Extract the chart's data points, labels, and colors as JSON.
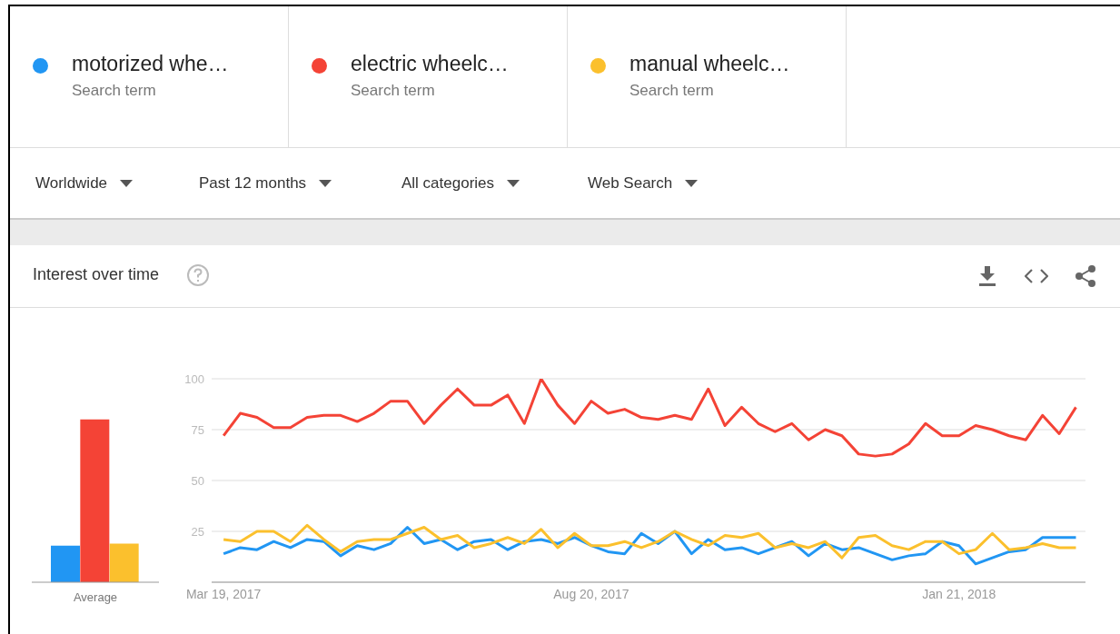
{
  "chart_data": [
    {
      "type": "bar",
      "title": "Interest over time",
      "xlabel": "Average",
      "categories": [
        null,
        null,
        null
      ],
      "values": [
        18,
        80,
        19
      ],
      "colors": [
        "#2196f3",
        "#f44336",
        "#fbc02d"
      ],
      "ylim": [
        0,
        100
      ],
      "tick_labels": false
    },
    {
      "type": "line",
      "legend": "top",
      "grid": "y",
      "x": [
        "2017-03-19",
        "2017-03-26",
        "2017-04-02",
        "2017-04-09",
        "2017-04-16",
        "2017-04-23",
        "2017-04-30",
        "2017-05-07",
        "2017-05-14",
        "2017-05-21",
        "2017-05-28",
        "2017-06-04",
        "2017-06-11",
        "2017-06-18",
        "2017-06-25",
        "2017-07-02",
        "2017-07-09",
        "2017-07-16",
        "2017-07-23",
        "2017-07-30",
        "2017-08-06",
        "2017-08-13",
        "2017-08-20",
        "2017-08-27",
        "2017-09-03",
        "2017-09-10",
        "2017-09-17",
        "2017-09-24",
        "2017-10-01",
        "2017-10-08",
        "2017-10-15",
        "2017-10-22",
        "2017-10-29",
        "2017-11-05",
        "2017-11-12",
        "2017-11-19",
        "2017-11-26",
        "2017-12-03",
        "2017-12-10",
        "2017-12-17",
        "2017-12-24",
        "2017-12-31",
        "2018-01-07",
        "2018-01-14",
        "2018-01-21",
        "2018-01-28",
        "2018-02-04",
        "2018-02-11",
        "2018-02-18",
        "2018-02-25",
        "2018-03-04",
        "2018-03-11"
      ],
      "series": [
        {
          "name": "motorized whe…",
          "color": "#2196f3",
          "values": [
            14,
            17,
            16,
            20,
            17,
            21,
            20,
            13,
            18,
            16,
            19,
            27,
            19,
            21,
            16,
            20,
            21,
            16,
            20,
            21,
            19,
            22,
            18,
            15,
            14,
            24,
            19,
            25,
            14,
            21,
            16,
            17,
            14,
            17,
            20,
            13,
            19,
            16,
            17,
            14,
            11,
            13,
            14,
            20,
            18,
            9,
            12,
            15,
            16,
            22,
            22,
            22
          ]
        },
        {
          "name": "electric wheelc…",
          "color": "#f44336",
          "values": [
            72,
            83,
            81,
            76,
            76,
            81,
            82,
            82,
            79,
            83,
            89,
            89,
            78,
            87,
            95,
            87,
            87,
            92,
            78,
            100,
            87,
            78,
            89,
            83,
            85,
            81,
            80,
            82,
            80,
            95,
            77,
            86,
            78,
            74,
            78,
            70,
            75,
            72,
            63,
            62,
            63,
            68,
            78,
            72,
            72,
            77,
            75,
            72,
            70,
            82,
            73,
            86
          ]
        },
        {
          "name": "manual wheelc…",
          "color": "#fbc02d",
          "values": [
            21,
            20,
            25,
            25,
            20,
            28,
            21,
            15,
            20,
            21,
            21,
            24,
            27,
            21,
            23,
            17,
            19,
            22,
            19,
            26,
            17,
            24,
            18,
            18,
            20,
            17,
            20,
            25,
            21,
            18,
            23,
            22,
            24,
            17,
            19,
            17,
            20,
            12,
            22,
            23,
            18,
            16,
            20,
            20,
            14,
            16,
            24,
            16,
            17,
            19,
            17,
            17
          ]
        }
      ],
      "xlim": [
        "2017-03-14",
        "2018-03-15"
      ],
      "xticks": [
        {
          "value": "2017-03-19",
          "label": "Mar 19, 2017"
        },
        {
          "value": "2017-08-20",
          "label": "Aug 20, 2017"
        },
        {
          "value": "2018-01-21",
          "label": "Jan 21, 2018"
        }
      ],
      "ylim": [
        0,
        100
      ],
      "yticks": [
        {
          "value": 0,
          "label": null
        },
        25,
        50,
        75,
        100
      ],
      "annotations": [
        "Search term",
        "Search term",
        "Search term",
        "Worldwide",
        "Past 12 months",
        "All categories",
        "Web Search"
      ]
    }
  ]
}
